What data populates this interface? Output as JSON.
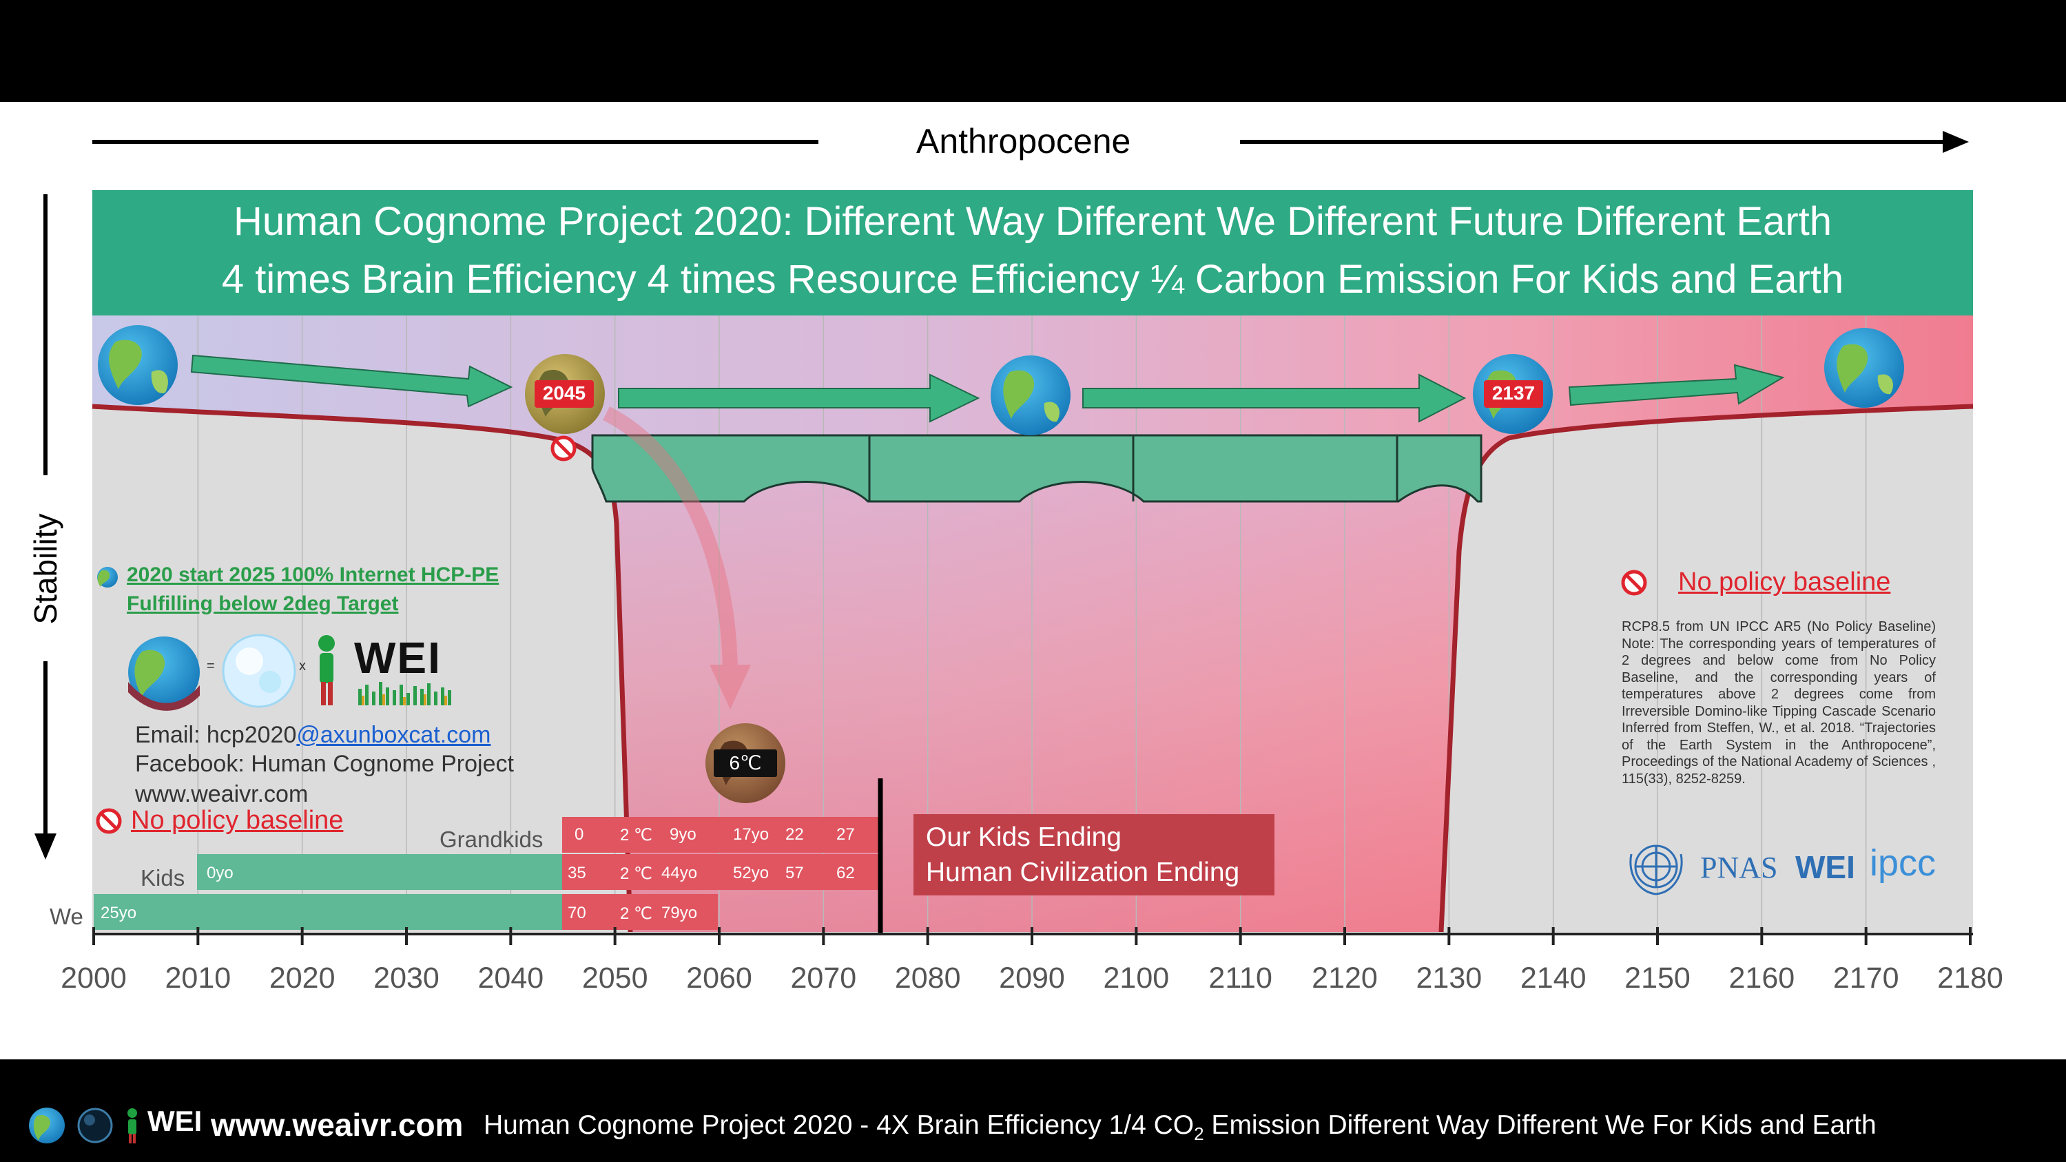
{
  "header": {
    "title": "Anthropocene"
  },
  "banner": {
    "line1": "Human Cognome Project 2020: Different  Way  Different We  Different Future  Different Earth",
    "line2": "4 times Brain Efficiency  4 times Resource Efficiency  ¼ Carbon Emission  For Kids and Earth"
  },
  "y_axis": {
    "label": "Stability"
  },
  "x_axis": {
    "ticks": [
      "2000",
      "2010",
      "2020",
      "2030",
      "2040",
      "2050",
      "2060",
      "2070",
      "2080",
      "2090",
      "2100",
      "2110",
      "2120",
      "2130",
      "2140",
      "2150",
      "2160",
      "2170",
      "2180"
    ]
  },
  "markers": {
    "year_left": "2045",
    "year_right": "2137",
    "temp": "6℃"
  },
  "left_notes": {
    "link_line1": "2020 start 2025 100% Internet HCP-PE",
    "link_line2": "Fulfilling below 2deg Target",
    "equation_equals": "=",
    "equation_times": "x",
    "wei_logo": "WEI",
    "email_prefix": "Email: hcp2020",
    "email_domain": "@axunboxcat.com",
    "facebook": "Facebook: Human Cognome Project",
    "website": "www.weaivr.com",
    "no_policy": "No policy baseline"
  },
  "right_notes": {
    "no_policy": "No policy baseline",
    "text": "RCP8.5 from  UN IPCC AR5 (No Policy Baseline) Note: The corresponding years of temperatures of 2 degrees and below come from No Policy Baseline, and the corresponding years of temperatures above 2 degrees come from Irreversible Domino-like Tipping Cascade Scenario Inferred from Steffen, W., et al. 2018. “Trajectories of the Earth System in the Anthropocene”, Proceedings of the National Academy of Sciences , 115(33), 8252-8259.",
    "logo_pnas": "PNAS",
    "logo_wei": "WEI",
    "logo_ipcc": "ipcc"
  },
  "generations": {
    "grandkids": {
      "label": "Grandkids",
      "age_start": "0",
      "temp": "2 ℃",
      "a1": "9yo",
      "a2": "17yo",
      "a3": "22",
      "a4": "27"
    },
    "kids": {
      "label": "Kids",
      "start": "0yo",
      "age_start": "35",
      "temp": "2 ℃",
      "a1": "44yo",
      "a2": "52yo",
      "a3": "57",
      "a4": "62"
    },
    "we": {
      "label": "We",
      "start": "25yo",
      "age_start": "70",
      "temp": "2 ℃",
      "a1": "79yo"
    }
  },
  "ending": {
    "line1": "Our Kids Ending",
    "line2": "Human Civilization Ending"
  },
  "footer": {
    "wei": "WEI",
    "site": "www.weaivr.com",
    "text_pre": "Human Cognome Project 2020 - 4X Brain Efficiency 1/4 CO",
    "text_sub": "2",
    "text_post": " Emission  Different Way Different We  For Kids and Earth"
  },
  "colors": {
    "banner": "#2eaa84",
    "curve": "#a3222c",
    "bridge": "#5fb896",
    "alert": "#e0242e"
  }
}
